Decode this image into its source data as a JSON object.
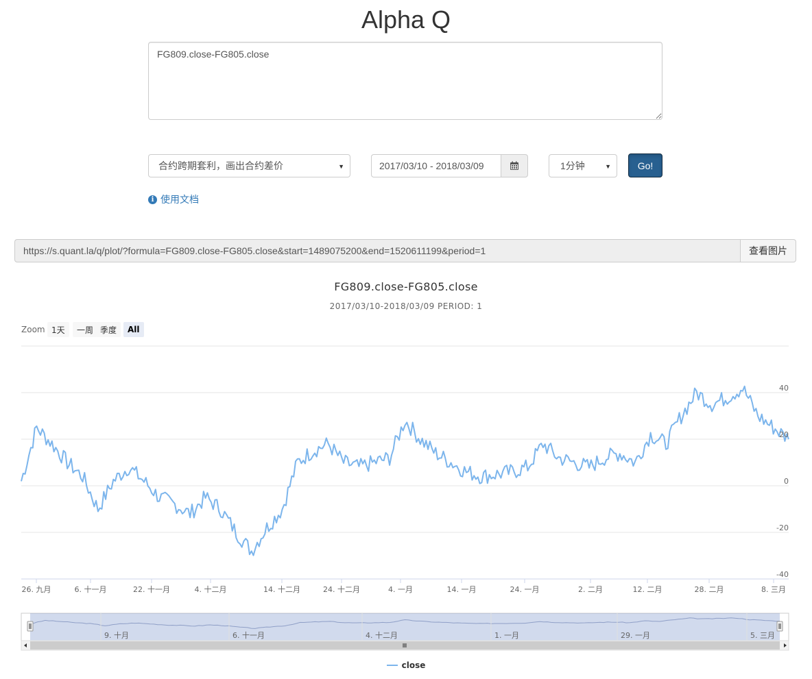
{
  "app": {
    "title": "Alpha Q"
  },
  "form": {
    "formula": "FG809.close-FG805.close",
    "strategy_selected": "合约跨期套利，画出合约差价",
    "date_range": "2017/03/10 - 2018/03/09",
    "period_selected": "1分钟",
    "go_label": "Go!",
    "doc_link": "使用文档"
  },
  "url_bar": {
    "url": "https://s.quant.la/q/plot/?formula=FG809.close-FG805.close&start=1489075200&end=1520611199&period=1",
    "view_image_label": "查看图片"
  },
  "zoom": {
    "label": "Zoom",
    "buttons": [
      "1天",
      "一周",
      "季度",
      "All"
    ],
    "active": "All"
  },
  "icons": {
    "calendar": "calendar-icon",
    "info": "info-circle-icon",
    "caret": "caret-down-icon"
  },
  "colors": {
    "series": "#7cb5ec",
    "primary_button": "#286090",
    "link": "#337ab7"
  },
  "chart_data": {
    "type": "line",
    "title": "FG809.close-FG805.close",
    "subtitle": "2017/03/10-2018/03/09 PERIOD: 1",
    "x_tick_labels": [
      "26. 九月",
      "6. 十一月",
      "22. 十一月",
      "4. 十二月",
      "14. 十二月",
      "24. 十二月",
      "4. 一月",
      "14. 一月",
      "24. 一月",
      "2. 二月",
      "12. 二月",
      "28. 二月",
      "8. 三月"
    ],
    "y_ticks": [
      40,
      20,
      0,
      -20,
      -40
    ],
    "ylim": [
      -40,
      60
    ],
    "grid": true,
    "legend_position": "bottom-center",
    "series": [
      {
        "name": "close",
        "points_note_free": true,
        "x": [
          0,
          2,
          4,
          6,
          8,
          10,
          12,
          14,
          16,
          18,
          20,
          22,
          24,
          26,
          28,
          30,
          32,
          34,
          36,
          38,
          40,
          42,
          44,
          46,
          48,
          50,
          52,
          54,
          56,
          58,
          60,
          62,
          64,
          66,
          68,
          70,
          72,
          74,
          76,
          78,
          80,
          82,
          84,
          86,
          88,
          90,
          92,
          94,
          96,
          98,
          100
        ],
        "values": [
          2,
          25,
          18,
          10,
          4,
          -10,
          2,
          8,
          2,
          -5,
          -8,
          -12,
          -5,
          -10,
          -20,
          -28,
          -18,
          -10,
          10,
          15,
          18,
          10,
          8,
          10,
          12,
          28,
          20,
          14,
          10,
          6,
          4,
          5,
          6,
          8,
          18,
          12,
          10,
          8,
          12,
          14,
          10,
          22,
          18,
          30,
          40,
          35,
          38,
          42,
          30,
          25,
          20
        ]
      }
    ],
    "navigator": {
      "tick_labels": [
        "9. 十月",
        "6. 十一月",
        "4. 十二月",
        "1. 一月",
        "29. 一月",
        "5. 三月"
      ]
    }
  }
}
